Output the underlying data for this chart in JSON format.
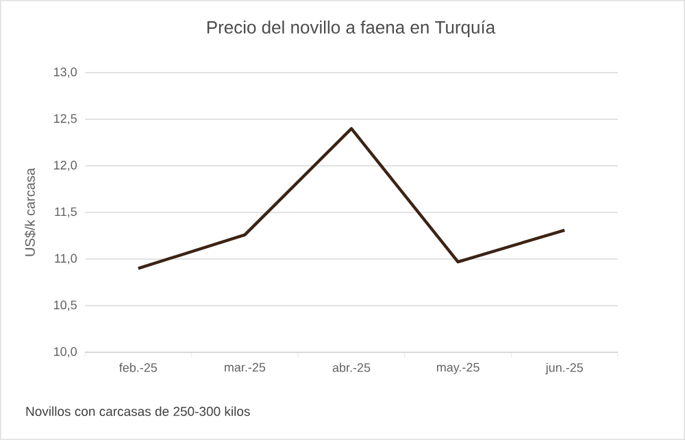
{
  "chart_data": {
    "type": "line",
    "title": "Precio del novillo a faena en Turquía",
    "ylabel": "US$/k carcasa",
    "categories": [
      "feb.-25",
      "mar.-25",
      "abr.-25",
      "may.-25",
      "jun.-25"
    ],
    "series": [
      {
        "color": "#3b2314",
        "values": [
          10.9,
          11.26,
          12.4,
          10.97,
          11.31
        ]
      }
    ],
    "ylim": [
      10,
      13
    ],
    "yticks": [
      {
        "value": 10,
        "label": "10,0"
      },
      {
        "value": 10.5,
        "label": "10,5"
      },
      {
        "value": 11,
        "label": "11,0"
      },
      {
        "value": 11.5,
        "label": "11,5"
      },
      {
        "value": 12,
        "label": "12,0"
      },
      {
        "value": 12.5,
        "label": "12,5"
      },
      {
        "value": 13,
        "label": "13,0"
      }
    ],
    "grid": "y",
    "marker": "none",
    "line_style": "solid",
    "annotations": [
      "Novillos con carcasas de 250-300 kilos"
    ]
  }
}
